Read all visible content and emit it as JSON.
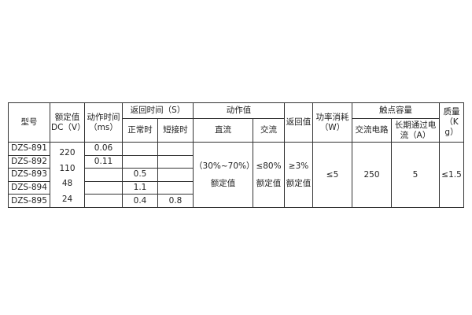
{
  "headers": {
    "model": "型号",
    "rated_dc": "额定值 DC（V）",
    "action_time": "动作时间（ms）",
    "return_time": "返回时间（S）",
    "normal": "正常时",
    "short": "短接时",
    "action_value": "动作值",
    "dc": "直流",
    "ac": "交流",
    "return_value": "返回值",
    "power": "功率消耗（W）",
    "contact_capacity": "触点容量",
    "ac_circuit": "交流电路",
    "long_current": "长期通过电流（A）",
    "mass": "质量（Kg）"
  },
  "rows": [
    {
      "model": "DZS-891",
      "action_time": "0.06",
      "normal": "",
      "short": ""
    },
    {
      "model": "DZS-892",
      "action_time": "0.11",
      "normal": "",
      "short": ""
    },
    {
      "model": "DZS-893",
      "action_time": "",
      "normal": "0.5",
      "short": ""
    },
    {
      "model": "DZS-894",
      "action_time": "",
      "normal": "1.1",
      "short": ""
    },
    {
      "model": "DZS-895",
      "action_time": "",
      "normal": "0.4",
      "short": "0.8"
    }
  ],
  "rated_values": [
    "220",
    "110",
    "48",
    "24"
  ],
  "merged": {
    "dc_value": "（30%~70%）",
    "dc_unit": "额定值",
    "ac_value": "≤80%",
    "ac_unit": "额定值",
    "return_value": "≥3%",
    "return_unit": "额定值",
    "power": "≤5",
    "ac_circuit": "250",
    "long_current": "5",
    "mass": "≤1.5"
  }
}
